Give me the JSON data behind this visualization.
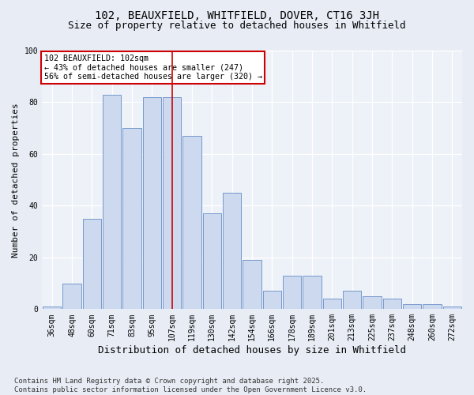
{
  "title1": "102, BEAUXFIELD, WHITFIELD, DOVER, CT16 3JH",
  "title2": "Size of property relative to detached houses in Whitfield",
  "xlabel": "Distribution of detached houses by size in Whitfield",
  "ylabel": "Number of detached properties",
  "categories": [
    "36sqm",
    "48sqm",
    "60sqm",
    "71sqm",
    "83sqm",
    "95sqm",
    "107sqm",
    "119sqm",
    "130sqm",
    "142sqm",
    "154sqm",
    "166sqm",
    "178sqm",
    "189sqm",
    "201sqm",
    "213sqm",
    "225sqm",
    "237sqm",
    "248sqm",
    "260sqm",
    "272sqm"
  ],
  "values": [
    1,
    10,
    35,
    83,
    70,
    82,
    82,
    67,
    37,
    45,
    19,
    7,
    13,
    13,
    4,
    7,
    5,
    4,
    2,
    2,
    1
  ],
  "bar_color": "#ccd9ef",
  "bar_edge_color": "#7799cc",
  "vline_x": 6,
  "vline_color": "#cc0000",
  "annotation_text": "102 BEAUXFIELD: 102sqm\n← 43% of detached houses are smaller (247)\n56% of semi-detached houses are larger (320) →",
  "annotation_box_color": "white",
  "annotation_box_edge": "#cc0000",
  "footnote": "Contains HM Land Registry data © Crown copyright and database right 2025.\nContains public sector information licensed under the Open Government Licence v3.0.",
  "bg_color": "#e8edf5",
  "plot_bg_color": "#edf1f8",
  "ylim": [
    0,
    100
  ],
  "title_fontsize": 10,
  "subtitle_fontsize": 9,
  "footnote_fontsize": 6.5,
  "tick_fontsize": 7,
  "ylabel_fontsize": 8,
  "xlabel_fontsize": 9
}
